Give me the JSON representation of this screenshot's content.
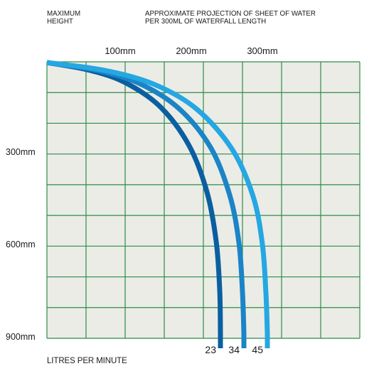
{
  "header": {
    "left_line1": "MAXIMUM",
    "left_line2": "HEIGHT",
    "right_line1": "APPROXIMATE PROJECTION OF SHEET OF WATER",
    "right_line2": "PER 300ML OF WATERFALL LENGTH"
  },
  "footer": {
    "label": "LITRES PER MINUTE"
  },
  "chart_data": {
    "type": "line",
    "title": "APPROXIMATE PROJECTION OF SHEET OF WATER PER 300ML OF WATERFALL LENGTH",
    "xlabel": "",
    "ylabel": "MAXIMUM HEIGHT",
    "x_ticks": [
      {
        "value": 100,
        "label": "100mm"
      },
      {
        "value": 200,
        "label": "200mm"
      },
      {
        "value": 300,
        "label": "300mm"
      }
    ],
    "y_ticks": [
      {
        "value": 300,
        "label": "300mm"
      },
      {
        "value": 600,
        "label": "600mm"
      },
      {
        "value": 900,
        "label": "900mm"
      }
    ],
    "xlim": [
      0,
      320
    ],
    "ylim": [
      0,
      900
    ],
    "y_inverted": true,
    "grid": true,
    "colors": {
      "grid_bg": "#ebece6",
      "grid_line": "#2e8b4a",
      "text": "#1a1a1a"
    },
    "series": [
      {
        "name": "23",
        "color": "#0a5fa0",
        "points": [
          [
            0,
            0
          ],
          [
            60,
            25
          ],
          [
            110,
            65
          ],
          [
            160,
            145
          ],
          [
            200,
            270
          ],
          [
            225,
            420
          ],
          [
            238,
            580
          ],
          [
            243,
            740
          ],
          [
            244,
            880
          ]
        ]
      },
      {
        "name": "34",
        "color": "#1b84c7",
        "points": [
          [
            0,
            0
          ],
          [
            70,
            25
          ],
          [
            130,
            68
          ],
          [
            185,
            148
          ],
          [
            230,
            275
          ],
          [
            257,
            430
          ],
          [
            270,
            585
          ],
          [
            275,
            745
          ],
          [
            277,
            880
          ]
        ]
      },
      {
        "name": "45",
        "color": "#25a7e2",
        "points": [
          [
            0,
            0
          ],
          [
            80,
            25
          ],
          [
            150,
            70
          ],
          [
            210,
            150
          ],
          [
            260,
            280
          ],
          [
            290,
            435
          ],
          [
            303,
            590
          ],
          [
            308,
            750
          ],
          [
            310,
            880
          ]
        ]
      }
    ]
  }
}
